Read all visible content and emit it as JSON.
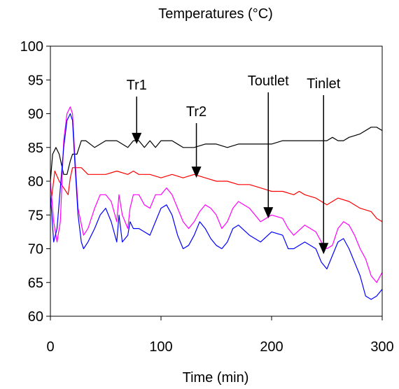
{
  "chart_data": {
    "type": "line",
    "title": "Temperatures (°C)",
    "xlabel": "Time (min)",
    "ylabel": "",
    "xlim": [
      0,
      300
    ],
    "ylim": [
      60,
      100
    ],
    "xticks": [
      0,
      100,
      200,
      300
    ],
    "yticks": [
      60,
      65,
      70,
      75,
      80,
      85,
      90,
      95,
      100
    ],
    "grid": false,
    "legend": "none",
    "series": [
      {
        "color": "#000000",
        "x": [
          0,
          2,
          5,
          8,
          12,
          15,
          18,
          20,
          24,
          28,
          32,
          40,
          50,
          60,
          70,
          75,
          80,
          85,
          90,
          95,
          100,
          110,
          120,
          130,
          140,
          150,
          160,
          170,
          180,
          190,
          200,
          210,
          220,
          230,
          240,
          250,
          255,
          260,
          265,
          270,
          280,
          290,
          295,
          300
        ],
        "y": [
          80,
          84,
          85,
          84,
          81,
          81,
          83,
          84,
          84,
          86,
          86,
          85,
          86,
          86,
          85,
          86,
          86,
          85,
          86,
          85,
          86,
          86,
          85,
          85,
          85.5,
          85.5,
          85,
          85.5,
          85.5,
          85.5,
          85.5,
          86,
          86,
          86,
          86,
          86,
          86.5,
          86,
          86,
          86.5,
          87,
          88,
          88,
          87.5
        ]
      },
      {
        "color": "#ff0000",
        "x": [
          0,
          4,
          8,
          12,
          16,
          18,
          20,
          24,
          28,
          34,
          40,
          50,
          60,
          70,
          75,
          80,
          90,
          100,
          110,
          120,
          130,
          140,
          150,
          160,
          170,
          180,
          190,
          200,
          210,
          220,
          225,
          230,
          240,
          250,
          260,
          270,
          280,
          290,
          295,
          300
        ],
        "y": [
          76,
          81.5,
          80,
          79,
          78,
          80.5,
          82,
          82,
          82,
          81,
          81,
          81,
          81.5,
          81,
          81.5,
          81,
          81,
          80.5,
          81,
          80.5,
          81,
          80.5,
          80,
          80,
          79.5,
          79.5,
          79,
          78.5,
          78.5,
          78,
          78.5,
          78,
          77.5,
          76.5,
          77.5,
          77,
          76,
          75.5,
          74.5,
          74
        ]
      },
      {
        "color": "#ff00ff",
        "x": [
          0,
          3,
          6,
          9,
          12,
          15,
          18,
          20,
          22,
          25,
          30,
          34,
          40,
          45,
          50,
          55,
          60,
          62,
          65,
          70,
          72,
          75,
          80,
          85,
          90,
          95,
          100,
          105,
          110,
          115,
          120,
          125,
          130,
          135,
          140,
          145,
          150,
          155,
          160,
          165,
          170,
          180,
          190,
          200,
          210,
          215,
          220,
          230,
          240,
          245,
          250,
          255,
          260,
          265,
          270,
          275,
          280,
          285,
          290,
          295,
          300
        ],
        "y": [
          80,
          74,
          71,
          74,
          86,
          90,
          91,
          90,
          84,
          76,
          72,
          73,
          76,
          78,
          78,
          77,
          74,
          78,
          75,
          73,
          76,
          78,
          78,
          76.5,
          76,
          78,
          78,
          79,
          78,
          76,
          74,
          73,
          74,
          75.5,
          76.5,
          76,
          75,
          73,
          74,
          76,
          77,
          76,
          74,
          75,
          74.5,
          73,
          72,
          73.5,
          72.5,
          71,
          70,
          70.5,
          73,
          74,
          73.5,
          72,
          70,
          68.5,
          66,
          65,
          66.5
        ]
      },
      {
        "color": "#0000ff",
        "x": [
          0,
          3,
          6,
          9,
          12,
          15,
          18,
          20,
          22,
          25,
          28,
          30,
          34,
          40,
          45,
          50,
          55,
          60,
          62,
          65,
          70,
          72,
          75,
          80,
          85,
          90,
          95,
          100,
          105,
          110,
          115,
          120,
          125,
          130,
          135,
          140,
          145,
          150,
          155,
          160,
          165,
          170,
          180,
          190,
          200,
          210,
          215,
          220,
          230,
          240,
          245,
          250,
          255,
          260,
          265,
          270,
          275,
          280,
          285,
          290,
          295,
          300
        ],
        "y": [
          78,
          71,
          73,
          79,
          85,
          89,
          90,
          89,
          83,
          75,
          71,
          70,
          71,
          73,
          75,
          76,
          74,
          71,
          75,
          71,
          72,
          74,
          73,
          73,
          72.5,
          72,
          74,
          76,
          76.5,
          75,
          72,
          70,
          70.5,
          72,
          74,
          73,
          71.5,
          70.5,
          70,
          71,
          73,
          73.5,
          72,
          71,
          72.5,
          72,
          70,
          70,
          71,
          70,
          68,
          67,
          69,
          71,
          71.5,
          70,
          68,
          66,
          63,
          62.5,
          63,
          64
        ]
      }
    ],
    "annotations": [
      {
        "label": "Tr1",
        "x": 78,
        "y": 85.5
      },
      {
        "label": "Tr2",
        "x": 132,
        "y": 80.5
      },
      {
        "label": "Toutlet",
        "x": 197,
        "y": 74.5
      },
      {
        "label": "Tinlet",
        "x": 247,
        "y": 69.2
      }
    ]
  }
}
